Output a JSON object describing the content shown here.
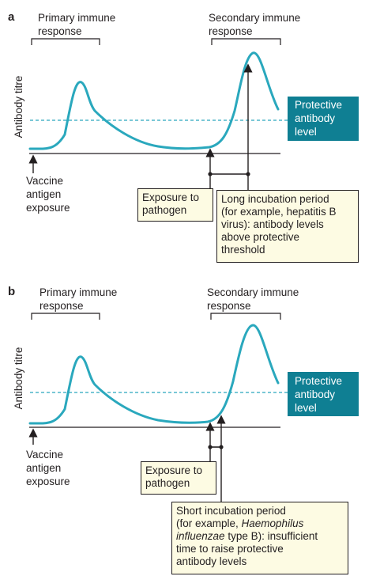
{
  "panels": [
    {
      "letter": "a",
      "primary_label": [
        "Primary immune",
        "response"
      ],
      "secondary_label": [
        "Secondary immune",
        "response"
      ],
      "y_axis_label": "Antibody titre",
      "protective_label": [
        "Protective",
        "antibody",
        "level"
      ],
      "vaccine_label": [
        "Vaccine",
        "antigen",
        "exposure"
      ],
      "exposure_label": [
        "Exposure to",
        "pathogen"
      ],
      "incubation_label": [
        "Long incubation period",
        "(for example, hepatitis B",
        "virus): antibody levels",
        "above protective",
        "threshold"
      ]
    },
    {
      "letter": "b",
      "primary_label": [
        "Primary immune",
        "response"
      ],
      "secondary_label": [
        "Secondary immune",
        "response"
      ],
      "y_axis_label": "Antibody titre",
      "protective_label": [
        "Protective",
        "antibody",
        "level"
      ],
      "vaccine_label": [
        "Vaccine",
        "antigen",
        "exposure"
      ],
      "exposure_label": [
        "Exposure to",
        "pathogen"
      ],
      "incubation_label": {
        "line1": "Short incubation period",
        "line2_prefix": "(for example, ",
        "line2_italic": "Haemophilus",
        "line3_italic": "influenzae",
        "line3_suffix": " type B): insufficient",
        "line4": "time to raise protective",
        "line5": "antibody levels"
      }
    }
  ],
  "colors": {
    "curve": "#2aa8bd",
    "protective_box": "#0f7f93",
    "note_bg": "#fdfbe3",
    "ink": "#231f20"
  }
}
